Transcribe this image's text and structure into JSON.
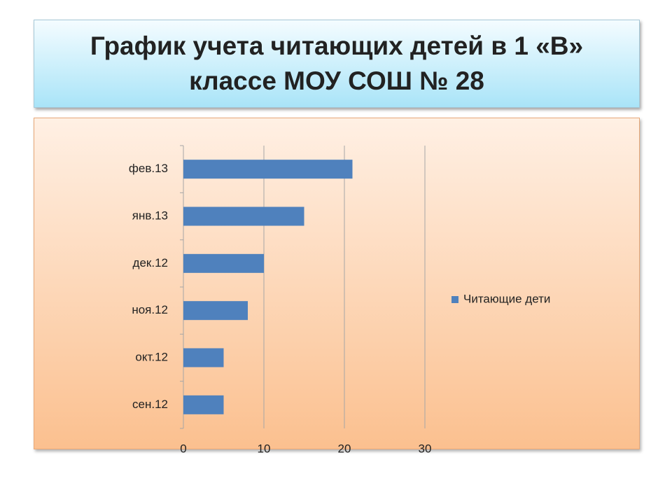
{
  "chart_data": {
    "type": "barh",
    "title": "График учета читающих детей в 1 «В» классе МОУ СОШ № 28",
    "categories": [
      "сен.12",
      "окт.12",
      "ноя.12",
      "дек.12",
      "янв.13",
      "фев.13"
    ],
    "series": [
      {
        "name": "Читающие дети",
        "color": "#4f81bd",
        "values": [
          5,
          5,
          8,
          10,
          15,
          21
        ]
      }
    ],
    "xlim": [
      0,
      30
    ],
    "xticks": [
      0,
      10,
      20,
      30
    ],
    "grid": true,
    "legend": "right"
  }
}
